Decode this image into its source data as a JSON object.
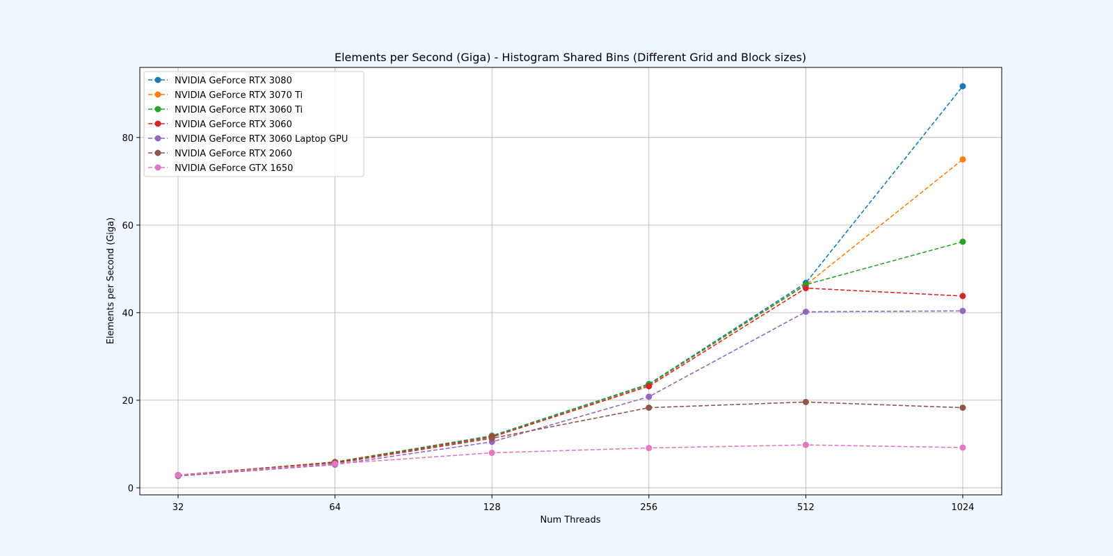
{
  "chart_data": {
    "type": "line",
    "title": "Elements per Second (Giga) - Histogram Shared Bins (Different Grid and Block sizes)",
    "xlabel": "Num Threads",
    "ylabel": "Elements per Second (Giga)",
    "x_scale": "log2",
    "x": [
      32,
      64,
      128,
      256,
      512,
      1024
    ],
    "x_tick_labels": [
      "32",
      "64",
      "128",
      "256",
      "512",
      "1024"
    ],
    "y_ticks": [
      0,
      20,
      40,
      60,
      80
    ],
    "ylim": [
      -1.6,
      96.0
    ],
    "grid": true,
    "legend_position": "upper-left",
    "line_style": "dashed",
    "marker": "circle",
    "series": [
      {
        "name": "NVIDIA GeForce RTX 3080",
        "color": "#1f77b4",
        "values": [
          2.9,
          5.9,
          11.9,
          23.7,
          46.8,
          91.7
        ]
      },
      {
        "name": "NVIDIA GeForce RTX 3070 Ti",
        "color": "#ff7f0e",
        "values": [
          2.9,
          5.9,
          11.8,
          23.5,
          46.3,
          75.0
        ]
      },
      {
        "name": "NVIDIA GeForce RTX 3060 Ti",
        "color": "#2ca02c",
        "values": [
          2.9,
          5.9,
          11.8,
          23.6,
          46.4,
          56.2
        ]
      },
      {
        "name": "NVIDIA GeForce RTX 3060",
        "color": "#d62728",
        "values": [
          2.9,
          5.8,
          11.6,
          23.2,
          45.6,
          43.8
        ]
      },
      {
        "name": "NVIDIA GeForce RTX 3060 Laptop GPU",
        "color": "#9467bd",
        "values": [
          2.7,
          5.3,
          10.5,
          20.8,
          40.2,
          40.4
        ]
      },
      {
        "name": "NVIDIA GeForce RTX 2060",
        "color": "#8c564b",
        "values": [
          2.8,
          5.6,
          11.3,
          18.3,
          19.6,
          18.3
        ]
      },
      {
        "name": "NVIDIA GeForce GTX 1650",
        "color": "#e377c2",
        "values": [
          2.9,
          5.5,
          8.0,
          9.1,
          9.8,
          9.2
        ]
      }
    ]
  }
}
